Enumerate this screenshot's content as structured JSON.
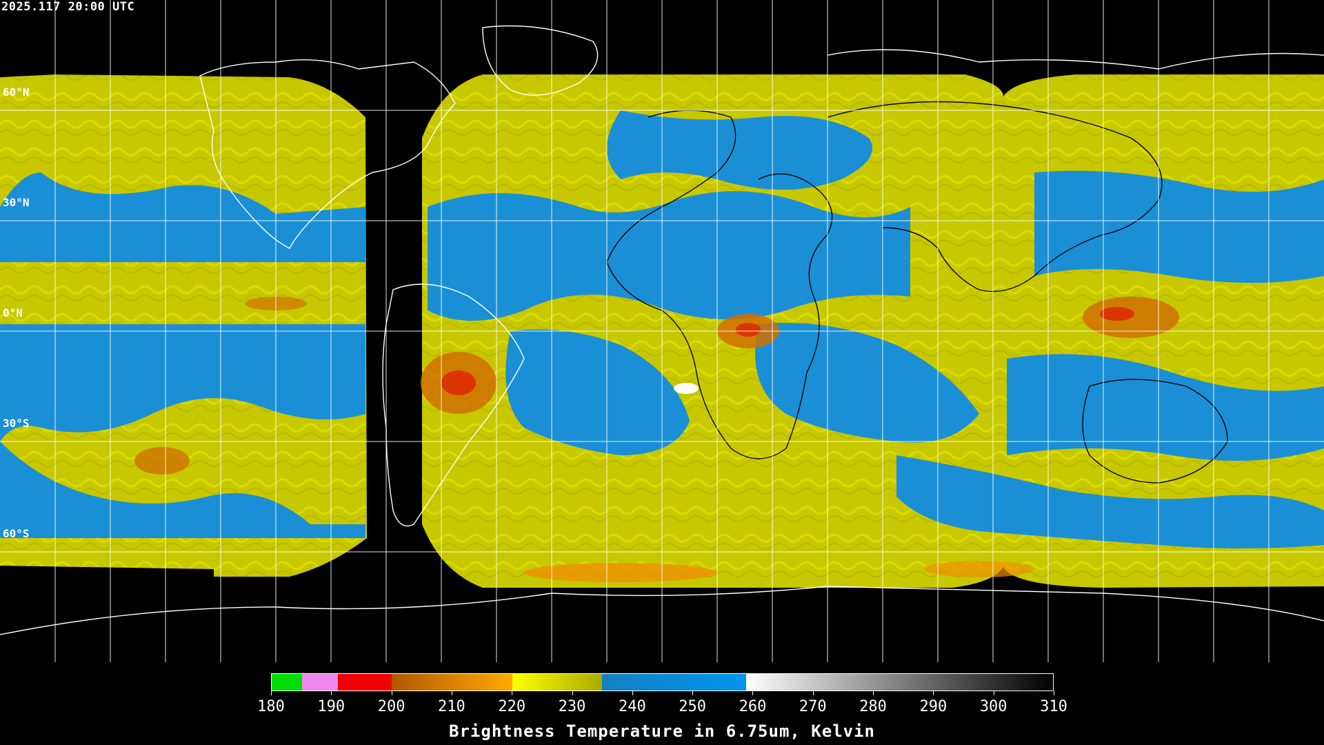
{
  "header": {
    "timestamp": "2025.117 20:00 UTC"
  },
  "map": {
    "latitude_labels": [
      "60°N",
      "30°N",
      "0°N",
      "30°S",
      "60°S"
    ],
    "latitude_values": [
      60,
      30,
      0,
      -30,
      -60
    ],
    "features": [
      "coastlines",
      "graticule",
      "water-vapor-imagery",
      "satellite-coverage-gap"
    ]
  },
  "colorbar": {
    "title": "Brightness Temperature in 6.75um, Kelvin",
    "min": 180,
    "max": 310,
    "tick_labels": [
      "180",
      "190",
      "200",
      "210",
      "220",
      "230",
      "240",
      "250",
      "260",
      "270",
      "280",
      "290",
      "300",
      "310"
    ],
    "colors": {
      "green": "#00dd00",
      "magenta": "#ee88ee",
      "red": "#ee0000",
      "orange_start": "#b05800",
      "orange_end": "#ffaa00",
      "yellow_start": "#ffff00",
      "yellow_end": "#aaaa00",
      "blue_start": "#1480c0",
      "blue_end": "#0096ee",
      "gray_start": "#ffffff",
      "gray_end": "#000000"
    }
  }
}
